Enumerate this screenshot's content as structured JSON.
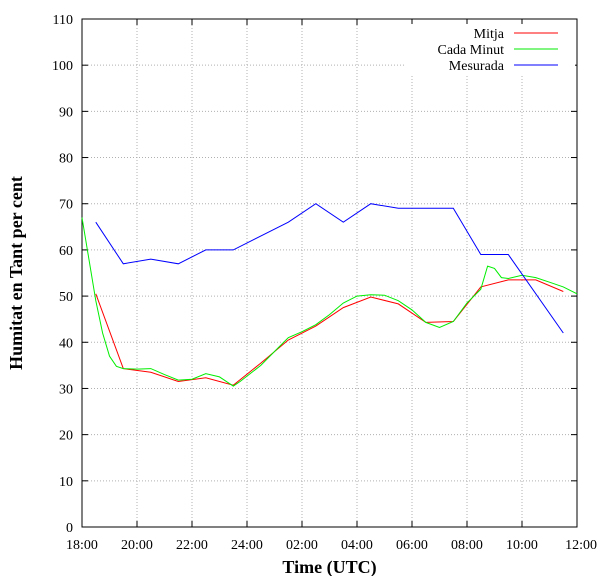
{
  "chart_data": {
    "type": "line",
    "xlabel": "Time (UTC)",
    "ylabel": "Humitat en Tant per cent",
    "ylim": [
      0,
      110
    ],
    "grid": true,
    "legend_position": "top-right",
    "x_tick_labels": [
      "18:00",
      "20:00",
      "22:00",
      "24:00",
      "02:00",
      "04:00",
      "06:00",
      "08:00",
      "10:00",
      "12:00"
    ],
    "y_tick_labels": [
      "0",
      "10",
      "20",
      "30",
      "40",
      "50",
      "60",
      "70",
      "80",
      "90",
      "100",
      "110"
    ],
    "series": [
      {
        "name": "Mitja",
        "color": "#ff0000",
        "points": [
          [
            "18:30",
            50.5
          ],
          [
            "19:30",
            34.3
          ],
          [
            "20:30",
            33.5
          ],
          [
            "21:30",
            31.5
          ],
          [
            "22:30",
            32.3
          ],
          [
            "23:30",
            30.7
          ],
          [
            "00:30",
            35.5
          ],
          [
            "01:30",
            40.5
          ],
          [
            "02:30",
            43.5
          ],
          [
            "03:30",
            47.5
          ],
          [
            "04:30",
            49.8
          ],
          [
            "05:30",
            48.3
          ],
          [
            "06:30",
            44.3
          ],
          [
            "07:30",
            44.5
          ],
          [
            "08:30",
            52.0
          ],
          [
            "09:30",
            53.5
          ],
          [
            "10:30",
            53.5
          ],
          [
            "11:30",
            51.0
          ]
        ]
      },
      {
        "name": "Cada Minut",
        "color": "#00ee00",
        "points": [
          [
            "18:00",
            67.0
          ],
          [
            "18:15",
            58.0
          ],
          [
            "18:30",
            49.0
          ],
          [
            "18:45",
            42.0
          ],
          [
            "19:00",
            37.0
          ],
          [
            "19:15",
            34.8
          ],
          [
            "19:30",
            34.3
          ],
          [
            "20:00",
            34.2
          ],
          [
            "20:30",
            34.3
          ],
          [
            "21:00",
            33.0
          ],
          [
            "21:30",
            31.8
          ],
          [
            "22:00",
            32.0
          ],
          [
            "22:30",
            33.2
          ],
          [
            "23:00",
            32.5
          ],
          [
            "23:30",
            30.5
          ],
          [
            "23:45",
            31.5
          ],
          [
            "00:30",
            35.0
          ],
          [
            "01:00",
            38.0
          ],
          [
            "01:30",
            41.0
          ],
          [
            "02:00",
            42.3
          ],
          [
            "02:30",
            43.8
          ],
          [
            "03:00",
            46.0
          ],
          [
            "03:30",
            48.5
          ],
          [
            "04:00",
            50.0
          ],
          [
            "04:30",
            50.3
          ],
          [
            "05:00",
            50.2
          ],
          [
            "05:30",
            49.0
          ],
          [
            "06:00",
            47.0
          ],
          [
            "06:30",
            44.3
          ],
          [
            "07:00",
            43.2
          ],
          [
            "07:30",
            44.5
          ],
          [
            "08:00",
            48.5
          ],
          [
            "08:30",
            51.5
          ],
          [
            "08:45",
            56.5
          ],
          [
            "09:00",
            56.0
          ],
          [
            "09:15",
            54.0
          ],
          [
            "09:30",
            53.8
          ],
          [
            "10:00",
            54.5
          ],
          [
            "10:30",
            54.0
          ],
          [
            "11:00",
            53.0
          ],
          [
            "11:30",
            52.0
          ],
          [
            "12:00",
            50.5
          ]
        ]
      },
      {
        "name": "Mesurada",
        "color": "#0000ff",
        "points": [
          [
            "18:30",
            66
          ],
          [
            "19:30",
            57
          ],
          [
            "20:30",
            58
          ],
          [
            "21:30",
            57
          ],
          [
            "22:30",
            60
          ],
          [
            "23:30",
            60
          ],
          [
            "01:30",
            66
          ],
          [
            "02:30",
            70
          ],
          [
            "03:30",
            66
          ],
          [
            "04:30",
            70
          ],
          [
            "05:30",
            69
          ],
          [
            "07:30",
            69
          ],
          [
            "08:30",
            59
          ],
          [
            "09:30",
            59
          ],
          [
            "11:30",
            42
          ]
        ]
      }
    ]
  }
}
